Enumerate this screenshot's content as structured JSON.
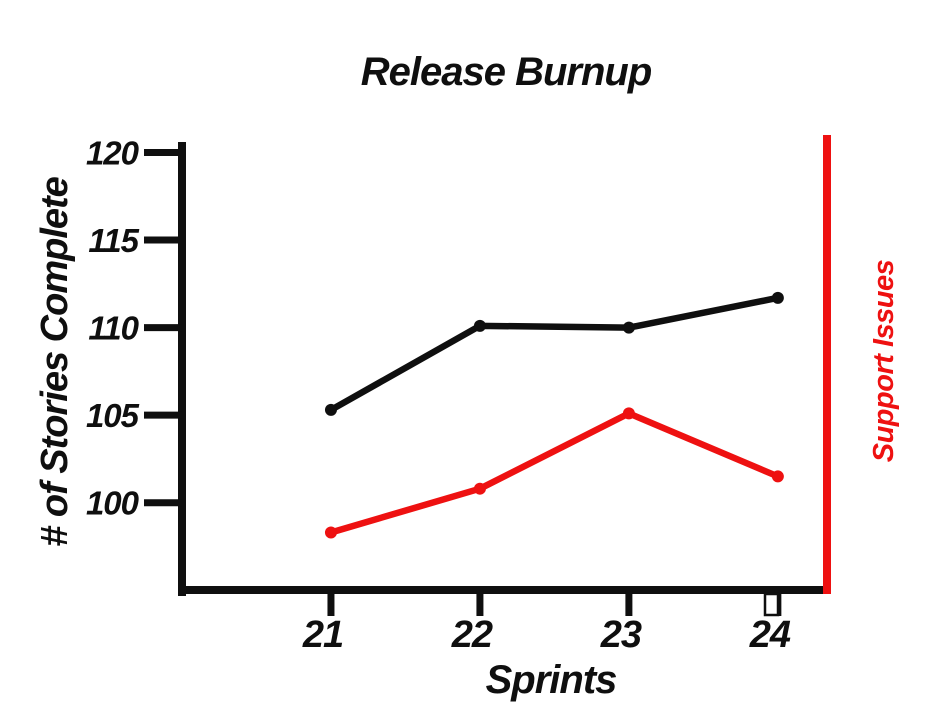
{
  "chart_data": {
    "type": "line",
    "title": "Release Burnup",
    "xlabel": "Sprints",
    "ylabel": "# of Stories Complete",
    "ylabel_right": "Support Issues",
    "x": [
      21,
      22,
      23,
      24
    ],
    "yticks": [
      100,
      105,
      110,
      115,
      120
    ],
    "xlim": [
      20.0,
      24.35
    ],
    "ylim": [
      94.9,
      120.6
    ],
    "grid": false,
    "legend_position": "none",
    "series": [
      {
        "name": "# of Stories Complete",
        "color": "#0f0f0f",
        "marker": "circle",
        "values": [
          105.3,
          110.1,
          110.0,
          111.7
        ]
      },
      {
        "name": "Support Issues",
        "color": "#ee1111",
        "marker": "circle",
        "values": [
          98.3,
          100.8,
          105.1,
          101.5
        ]
      }
    ],
    "right_axis_line_color": "#ee1111"
  },
  "colors": {
    "background": "#ffffff",
    "axis": "#0f0f0f",
    "accent_red": "#ee1111"
  }
}
